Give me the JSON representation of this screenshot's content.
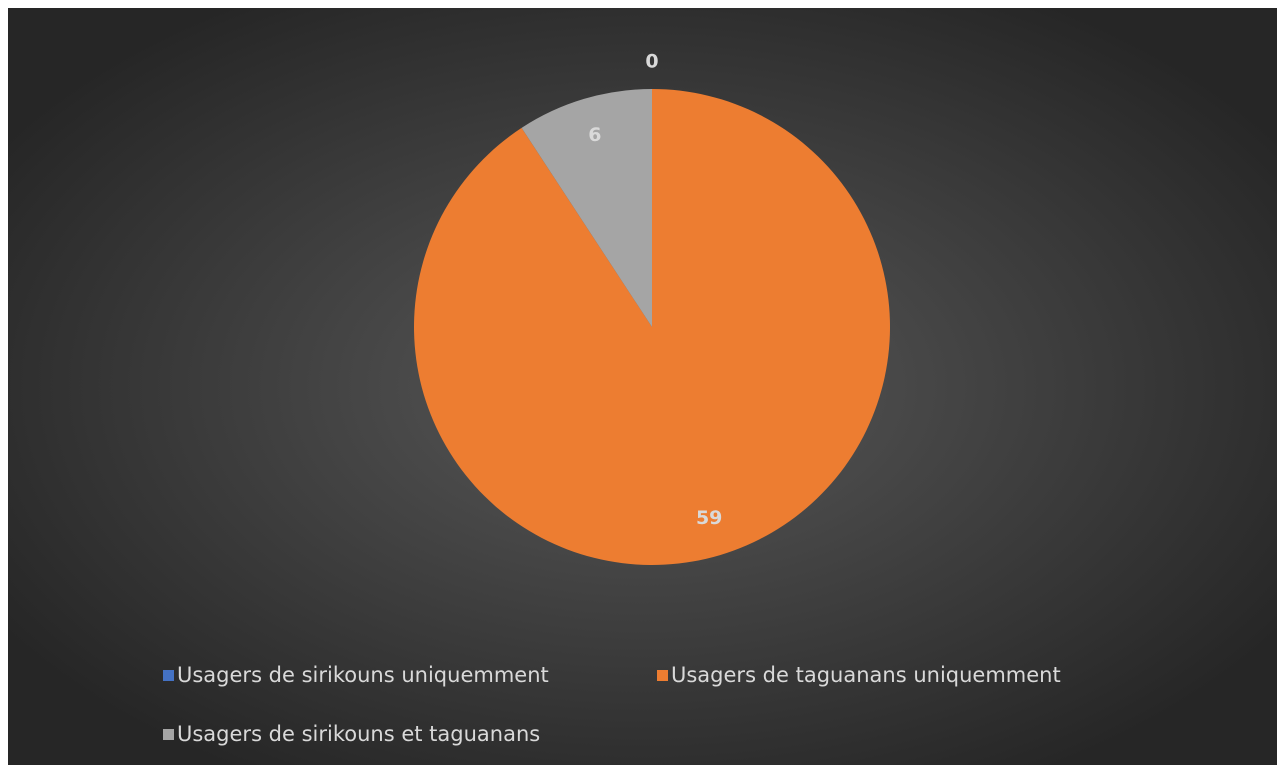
{
  "chart_data": {
    "type": "pie",
    "categories": [
      "Usagers de sirikouns uniquemment",
      "Usagers de taguanans uniquemment",
      "Usagers de sirikouns et taguanans"
    ],
    "values": [
      0,
      59,
      6
    ],
    "colors": [
      "#4472c4",
      "#ed7d31",
      "#a5a5a5"
    ]
  }
}
